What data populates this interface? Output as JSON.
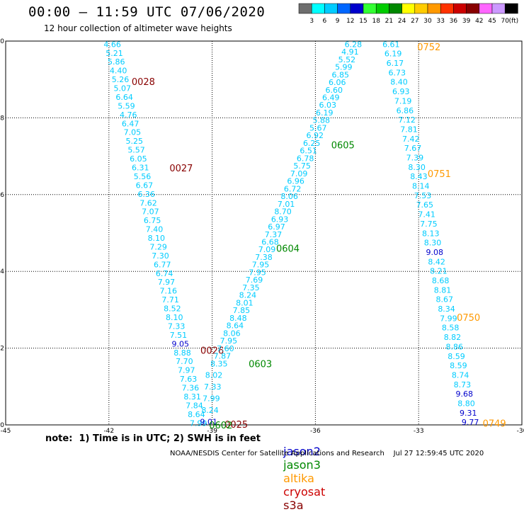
{
  "header": {
    "title": "00:00 – 11:59 UTC 07/06/2020",
    "subtitle": "12 hour collection of altimeter wave heights"
  },
  "colorbar": {
    "labels": [
      "3",
      "6",
      "9",
      "12",
      "15",
      "18",
      "21",
      "24",
      "27",
      "30",
      "33",
      "36",
      "39",
      "42",
      "45",
      "70",
      "(ft)"
    ],
    "colors": [
      "#6e6e6e",
      "#00ffff",
      "#00ccff",
      "#0066ff",
      "#0000cc",
      "#33ff33",
      "#00cc00",
      "#008800",
      "#ffff00",
      "#ffcc00",
      "#ff9900",
      "#ff3300",
      "#cc0000",
      "#880000",
      "#ff66ff",
      "#cc99ff",
      "#000000"
    ]
  },
  "footer": {
    "note": "note:  1) Time is in UTC; 2) SWH is in feet",
    "credit": "NOAA/NESDIS Center for Satellite Applications and Research",
    "timestamp": "Jul 27 12:59:45 UTC 2020",
    "satellites": [
      {
        "name": "jason2",
        "color": "#0000cc"
      },
      {
        "name": "jason3",
        "color": "#008800"
      },
      {
        "name": "altika",
        "color": "#ff9900"
      },
      {
        "name": "cryosat",
        "color": "#cc0000"
      },
      {
        "name": "s3a",
        "color": "#880000"
      }
    ]
  },
  "chart_data": {
    "type": "scatter",
    "xlim": [
      -45,
      -30
    ],
    "ylim": [
      20,
      30
    ],
    "xticks": [
      "-45",
      "-42",
      "-39",
      "-36",
      "-33",
      "-30"
    ],
    "yticks": [
      "20",
      "22",
      "24",
      "26",
      "28",
      "30"
    ],
    "grid": true,
    "tracks": [
      {
        "id": "0028-0027-0026",
        "pass_labels": [
          {
            "label": "0028",
            "lon": -41.0,
            "lat": 28.95,
            "color": "#880000"
          },
          {
            "label": "0027",
            "lon": -39.9,
            "lat": 26.7,
            "color": "#880000"
          },
          {
            "label": "0026",
            "lon": -39.0,
            "lat": 21.95,
            "color": "#880000"
          }
        ],
        "start": [
          -41.9,
          29.92
        ],
        "end": [
          -39.4,
          20.05
        ],
        "color": "#00ccff",
        "values": [
          "4.66",
          "5.21",
          "5.86",
          "4.40",
          "5.26",
          "5.07",
          "6.64",
          "5.59",
          "4.76",
          "6.47",
          "7.05",
          "5.25",
          "5.57",
          "6.05",
          "6.31",
          "5.56",
          "6.67",
          "6.36",
          "7.62",
          "7.07",
          "6.75",
          "7.40",
          "8.10",
          "7.29",
          "7.30",
          "6.77",
          "6.74",
          "7.97",
          "7.16",
          "7.71",
          "8.52",
          "8.10",
          "7.33",
          "7.51",
          "9.05",
          "8.88",
          "7.70",
          "7.97",
          "7.63",
          "7.36",
          "8.31",
          "7.84",
          "8.64",
          "7.99"
        ],
        "dark_values": [
          "9.05"
        ]
      },
      {
        "id": "0025",
        "pass_labels": [
          {
            "label": "0025",
            "lon": -38.3,
            "lat": 20.02,
            "color": "#880000"
          }
        ],
        "start": [
          -38.95,
          21.3
        ],
        "end": [
          -39.1,
          20.08
        ],
        "color": "#00ccff",
        "values": [
          "8.02",
          "7.33",
          "7.99",
          "8.24",
          "9.01"
        ],
        "dark_values": [
          "9.01"
        ]
      },
      {
        "id": "0602-0603-0604-0605",
        "pass_labels": [
          {
            "label": "0602",
            "lon": -38.75,
            "lat": 20.0,
            "color": "#008800"
          },
          {
            "label": "0603",
            "lon": -37.6,
            "lat": 21.6,
            "color": "#008800"
          },
          {
            "label": "0604",
            "lon": -36.8,
            "lat": 24.6,
            "color": "#008800"
          },
          {
            "label": "0605",
            "lon": -35.2,
            "lat": 27.3,
            "color": "#008800"
          }
        ],
        "start": [
          -34.9,
          29.92
        ],
        "end": [
          -38.8,
          21.6
        ],
        "color": "#00ccff",
        "values": [
          "6.28",
          "4.91",
          "5.52",
          "5.99",
          "6.85",
          "6.06",
          "6.60",
          "6.49",
          "6.03",
          "6.19",
          "5.88",
          "5.67",
          "6.92",
          "6.25",
          "6.51",
          "6.78",
          "5.75",
          "7.09",
          "6.96",
          "6.72",
          "8.06",
          "7.01",
          "8.70",
          "6.93",
          "6.97",
          "7.37",
          "6.68",
          "7.09",
          "7.38",
          "7.95",
          "7.95",
          "7.69",
          "7.35",
          "8.24",
          "8.01",
          "7.85",
          "8.48",
          "8.64",
          "8.06",
          "7.95",
          "7.60",
          "7.87",
          "8.35"
        ],
        "dark_values": []
      },
      {
        "id": "0752-0751-0750-0749",
        "pass_labels": [
          {
            "label": "0752",
            "lon": -32.7,
            "lat": 29.85,
            "color": "#ff9900"
          },
          {
            "label": "0751",
            "lon": -32.4,
            "lat": 26.55,
            "color": "#ff9900"
          },
          {
            "label": "0750",
            "lon": -31.55,
            "lat": 22.8,
            "color": "#ff9900"
          },
          {
            "label": "0749",
            "lon": -30.8,
            "lat": 20.05,
            "color": "#ff9900"
          }
        ],
        "start": [
          -33.8,
          29.92
        ],
        "end": [
          -31.5,
          20.07
        ],
        "color": "#00ccff",
        "values": [
          "6.61",
          "6.19",
          "6.17",
          "6.73",
          "8.40",
          "6.93",
          "7.19",
          "6.86",
          "7.12",
          "7.81",
          "7.42",
          "7.67",
          "7.39",
          "8.30",
          "8.43",
          "8.14",
          "7.53",
          "7.65",
          "7.41",
          "7.75",
          "8.13",
          "8.30",
          "9.08",
          "8.42",
          "8.21",
          "8.68",
          "8.81",
          "8.67",
          "8.34",
          "7.99",
          "8.58",
          "8.82",
          "8.86",
          "8.59",
          "8.59",
          "8.74",
          "8.73",
          "9.68",
          "8.80",
          "9.31",
          "9.77"
        ],
        "dark_values": [
          "9.08",
          "9.68",
          "9.31",
          "9.77"
        ]
      }
    ]
  }
}
